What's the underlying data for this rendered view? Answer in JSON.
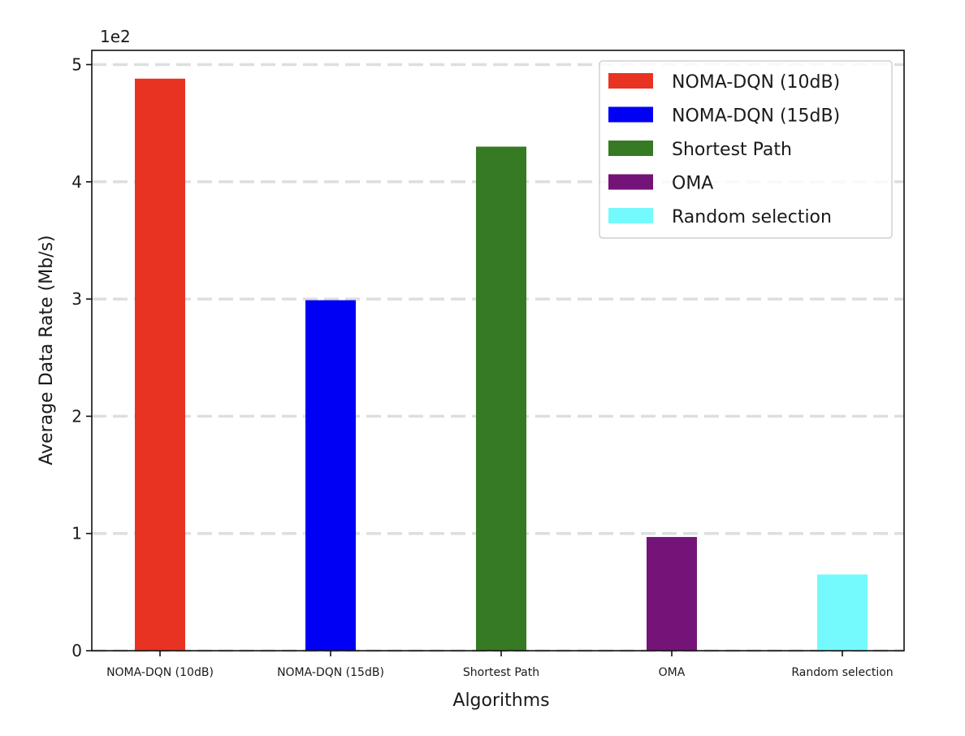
{
  "chart_data": {
    "type": "bar",
    "title": "",
    "xlabel": "Algorithms",
    "ylabel": "Average Data Rate (Mb/s)",
    "y_offset_label": "1e2",
    "categories": [
      "NOMA-DQN (10dB)",
      "NOMA-DQN (15dB)",
      "Shortest Path",
      "OMA",
      "Random selection"
    ],
    "values": [
      488,
      299,
      430,
      97,
      65
    ],
    "colors": [
      "#e83323",
      "#0000f5",
      "#367a23",
      "#741478",
      "#74fafc"
    ],
    "ylim": [
      0,
      512
    ],
    "yticks": [
      0,
      100,
      200,
      300,
      400,
      500
    ],
    "ytick_labels": [
      "0",
      "1",
      "2",
      "3",
      "4",
      "5"
    ],
    "grid": "horizontal dashed",
    "legend": {
      "placement": "top-right",
      "entries": [
        "NOMA-DQN (10dB)",
        "NOMA-DQN (15dB)",
        "Shortest Path",
        "OMA",
        "Random selection"
      ]
    }
  }
}
